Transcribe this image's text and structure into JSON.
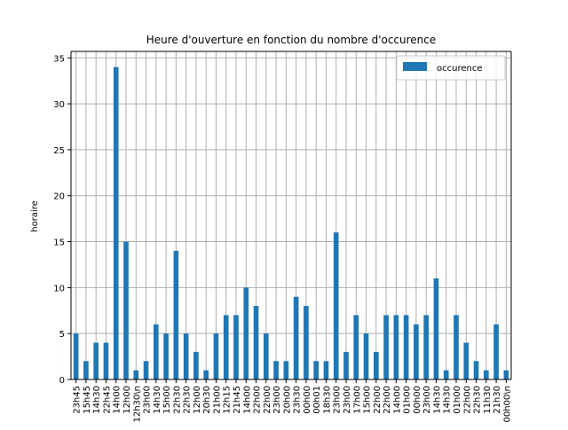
{
  "chart_data": {
    "type": "bar",
    "title": "Heure d'ouverture en fonction du nombre d'occurence",
    "xlabel": "",
    "ylabel": "horaire",
    "ylim": [
      0,
      35.7
    ],
    "yticks": [
      0,
      5,
      10,
      15,
      20,
      25,
      30,
      35
    ],
    "grid": true,
    "legend_position": "top-right",
    "colors": {
      "bar": "#1f77b4",
      "grid": "#b0b0b0",
      "axis": "#000000"
    },
    "series": [
      {
        "name": "occurence",
        "values": [
          5,
          2,
          4,
          4,
          34,
          15,
          1,
          2,
          6,
          5,
          14,
          5,
          3,
          1,
          5,
          7,
          7,
          10,
          8,
          5,
          2,
          2,
          9,
          8,
          2,
          2,
          16,
          3,
          7,
          5,
          3,
          7,
          7,
          7,
          6,
          7,
          11,
          1,
          7,
          4,
          2,
          1,
          6,
          1
        ]
      }
    ],
    "categories": [
      "23h45",
      "15h45",
      "14h30",
      "22h45",
      "14h00",
      "12h00",
      "12h30\\n",
      "23h00",
      "14h30",
      "15h00",
      "22h30",
      "22h30",
      "12h00",
      "20h30",
      "21h00",
      "12h15",
      "21h45",
      "14h00",
      "22h00",
      "22h00",
      "23h00",
      "20h00",
      "23h30",
      "00h00",
      "00h01",
      "18h30",
      "23h00",
      "23h00",
      "17h00",
      "15h00",
      "22h00",
      "22h00",
      "14h00",
      "01h00",
      "00h00",
      "23h00",
      "14h30",
      "14h30",
      "01h00",
      "22h00",
      "22h30",
      "11h30",
      "21h30",
      "00h00\\n"
    ]
  }
}
